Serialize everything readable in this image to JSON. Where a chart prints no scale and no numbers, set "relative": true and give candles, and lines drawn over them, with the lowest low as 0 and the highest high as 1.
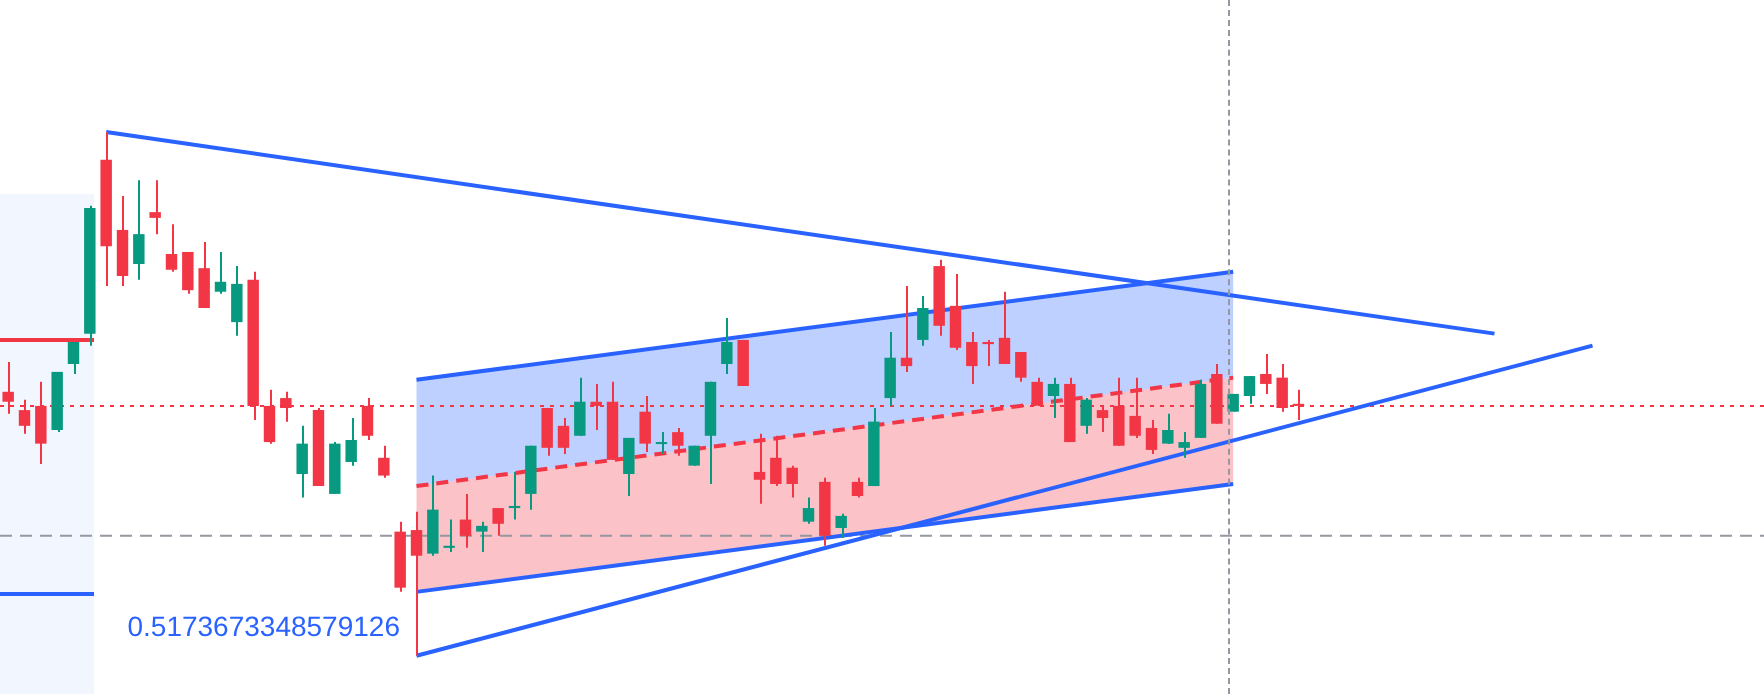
{
  "chart_data": {
    "type": "candlestick",
    "relative": true,
    "categories": [
      null,
      null,
      null,
      null,
      null,
      null,
      null,
      null,
      null,
      null,
      null,
      null,
      null,
      null,
      null,
      null,
      null,
      null,
      null,
      null,
      null,
      null,
      null,
      null,
      null,
      null,
      null,
      null,
      null,
      null,
      null,
      null,
      null,
      null,
      null,
      null,
      null,
      null,
      null,
      null,
      null,
      null,
      null,
      null,
      null,
      null,
      null,
      null,
      null,
      null,
      null,
      null,
      null,
      null,
      null,
      null,
      null,
      null,
      null,
      null,
      null,
      null,
      null,
      null,
      null,
      null,
      null,
      null,
      null,
      null,
      null,
      null,
      null,
      null,
      null,
      null,
      null,
      null,
      null,
      null,
      null,
      null,
      null,
      null,
      null,
      null,
      null,
      null,
      null,
      null,
      null,
      null,
      null,
      null,
      null,
      null,
      null,
      null,
      null,
      null,
      null,
      null,
      null,
      null,
      null,
      null,
      null,
      null
    ],
    "ohlc": [
      [
        0.504,
        0.561,
        0.462,
        0.485
      ],
      [
        0.469,
        0.489,
        0.424,
        0.439
      ],
      [
        0.477,
        0.523,
        0.366,
        0.405
      ],
      [
        0.431,
        0.542,
        0.427,
        0.542
      ],
      [
        0.557,
        0.599,
        0.538,
        0.599
      ],
      [
        0.615,
        0.859,
        0.592,
        0.855
      ],
      [
        0.947,
        1,
        0.706,
        0.782
      ],
      [
        0.813,
        0.878,
        0.706,
        0.725
      ],
      [
        0.748,
        0.908,
        0.718,
        0.805
      ],
      [
        0.847,
        0.908,
        0.805,
        0.836
      ],
      [
        0.767,
        0.824,
        0.733,
        0.737
      ],
      [
        0.771,
        0.771,
        0.691,
        0.698
      ],
      [
        0.74,
        0.79,
        0.664,
        0.664
      ],
      [
        0.695,
        0.771,
        0.691,
        0.714
      ],
      [
        0.637,
        0.744,
        0.611,
        0.71
      ],
      [
        0.718,
        0.733,
        0.45,
        0.477
      ],
      [
        0.477,
        0.508,
        0.405,
        0.408
      ],
      [
        0.492,
        0.504,
        0.447,
        0.473
      ],
      [
        0.347,
        0.439,
        0.302,
        0.405
      ],
      [
        0.469,
        0.473,
        0.324,
        0.324
      ],
      [
        0.309,
        0.408,
        0.309,
        0.405
      ],
      [
        0.37,
        0.454,
        0.363,
        0.412
      ],
      [
        0.477,
        0.492,
        0.412,
        0.42
      ],
      [
        0.378,
        0.401,
        0.34,
        0.344
      ],
      [
        0.237,
        0.256,
        0.122,
        0.13
      ],
      [
        0.24,
        0.275,
        0,
        0.191
      ],
      [
        0.195,
        0.344,
        0.191,
        0.279
      ],
      [
        0.206,
        0.26,
        0.198,
        0.21
      ],
      [
        0.26,
        0.309,
        0.206,
        0.229
      ],
      [
        0.237,
        0.256,
        0.198,
        0.248
      ],
      [
        0.282,
        0.282,
        0.229,
        0.252
      ],
      [
        0.282,
        0.351,
        0.26,
        0.286
      ],
      [
        0.309,
        0.401,
        0.279,
        0.401
      ],
      [
        0.473,
        0.473,
        0.382,
        0.397
      ],
      [
        0.439,
        0.454,
        0.385,
        0.397
      ],
      [
        0.42,
        0.531,
        0.42,
        0.485
      ],
      [
        0.485,
        0.519,
        0.431,
        0.477
      ],
      [
        0.485,
        0.523,
        0.374,
        0.374
      ],
      [
        0.347,
        0.416,
        0.305,
        0.416
      ],
      [
        0.466,
        0.496,
        0.389,
        0.405
      ],
      [
        0.405,
        0.427,
        0.385,
        0.408
      ],
      [
        0.427,
        0.435,
        0.382,
        0.401
      ],
      [
        0.363,
        0.401,
        0.363,
        0.401
      ],
      [
        0.42,
        0.523,
        0.328,
        0.523
      ],
      [
        0.557,
        0.645,
        0.538,
        0.599
      ],
      [
        0.603,
        0.603,
        0.515,
        0.515
      ],
      [
        0.351,
        0.424,
        0.29,
        0.336
      ],
      [
        0.378,
        0.42,
        0.324,
        0.328
      ],
      [
        0.359,
        0.363,
        0.302,
        0.328
      ],
      [
        0.256,
        0.302,
        0.252,
        0.282
      ],
      [
        0.332,
        0.34,
        0.21,
        0.229
      ],
      [
        0.244,
        0.271,
        0.225,
        0.267
      ],
      [
        0.332,
        0.34,
        0.302,
        0.305
      ],
      [
        0.324,
        0.473,
        0.324,
        0.447
      ],
      [
        0.492,
        0.618,
        0.477,
        0.569
      ],
      [
        0.569,
        0.706,
        0.542,
        0.553
      ],
      [
        0.603,
        0.687,
        0.592,
        0.664
      ],
      [
        0.744,
        0.756,
        0.611,
        0.63
      ],
      [
        0.668,
        0.729,
        0.584,
        0.588
      ],
      [
        0.599,
        0.618,
        0.519,
        0.553
      ],
      [
        0.599,
        0.603,
        0.553,
        0.595
      ],
      [
        0.607,
        0.695,
        0.557,
        0.557
      ],
      [
        0.58,
        0.58,
        0.523,
        0.531
      ],
      [
        0.523,
        0.531,
        0.477,
        0.481
      ],
      [
        0.496,
        0.531,
        0.454,
        0.519
      ],
      [
        0.519,
        0.531,
        0.408,
        0.408
      ],
      [
        0.439,
        0.492,
        0.424,
        0.489
      ],
      [
        0.469,
        0.477,
        0.427,
        0.454
      ],
      [
        0.477,
        0.531,
        0.401,
        0.401
      ],
      [
        0.458,
        0.531,
        0.416,
        0.42
      ],
      [
        0.435,
        0.45,
        0.385,
        0.393
      ],
      [
        0.405,
        0.462,
        0.405,
        0.431
      ],
      [
        0.397,
        0.427,
        0.378,
        0.408
      ],
      [
        0.416,
        0.527,
        0.416,
        0.519
      ],
      [
        0.538,
        0.557,
        0.443,
        0.443
      ],
      [
        0.466,
        0.5,
        0.466,
        0.5
      ],
      [
        0.496,
        0.534,
        0.481,
        0.534
      ],
      [
        0.538,
        0.576,
        0.5,
        0.519
      ],
      [
        0.531,
        0.557,
        0.466,
        0.473
      ],
      [
        0.481,
        0.508,
        0.45,
        0.477
      ],
      null,
      null,
      null,
      null,
      null,
      null,
      null,
      null,
      null,
      null,
      null,
      null,
      null,
      null,
      null,
      null,
      null,
      null,
      null,
      null,
      null,
      null,
      null,
      null,
      null,
      null,
      null,
      null
    ],
    "colors": [
      "#f23645",
      "#f23645",
      "#f23645",
      "#089981",
      "#089981",
      "#089981",
      "#f23645",
      "#f23645",
      "#089981",
      "#f23645",
      "#f23645",
      "#f23645",
      "#f23645",
      "#089981",
      "#089981",
      "#f23645",
      "#f23645",
      "#f23645",
      "#089981",
      "#f23645",
      "#089981",
      "#089981",
      "#f23645",
      "#f23645",
      "#f23645",
      "#f23645",
      "#089981",
      "#089981",
      "#f23645",
      "#089981",
      "#f23645",
      "#089981",
      "#089981",
      "#f23645",
      "#f23645",
      "#089981",
      "#f23645",
      "#f23645",
      "#089981",
      "#f23645",
      "#089981",
      "#f23645",
      "#089981",
      "#089981",
      "#089981",
      "#f23645",
      "#f23645",
      "#f23645",
      "#f23645",
      "#089981",
      "#f23645",
      "#089981",
      "#f23645",
      "#089981",
      "#089981",
      "#f23645",
      "#089981",
      "#f23645",
      "#f23645",
      "#f23645",
      "#f23645",
      "#f23645",
      "#f23645",
      "#f23645",
      "#089981",
      "#f23645",
      "#089981",
      "#f23645",
      "#f23645",
      "#f23645",
      "#f23645",
      "#089981",
      "#089981",
      "#089981",
      "#f23645",
      "#089981",
      "#089981",
      "#f23645",
      "#f23645",
      "#f23645",
      null,
      null,
      null,
      null,
      null,
      null,
      null,
      null,
      null,
      null,
      null,
      null,
      null,
      null,
      null,
      null,
      null,
      null,
      null,
      null,
      null,
      null,
      null,
      null,
      null,
      null,
      null,
      null
    ],
    "series": [
      {
        "type": "line",
        "color": "#2962ff",
        "values": [
          null,
          null,
          null,
          null,
          null,
          null,
          1,
          null,
          null,
          null,
          null,
          null,
          null,
          null,
          null,
          null,
          null,
          null,
          null,
          null,
          null,
          null,
          null,
          null,
          null,
          null,
          null,
          null,
          null,
          null,
          null,
          null,
          null,
          null,
          null,
          null,
          null,
          null,
          null,
          null,
          null,
          null,
          null,
          null,
          null,
          null,
          null,
          null,
          null,
          null,
          null,
          null,
          null,
          null,
          null,
          null,
          null,
          null,
          null,
          null,
          null,
          null,
          null,
          null,
          null,
          null,
          null,
          null,
          null,
          null,
          null,
          null,
          null,
          null,
          null,
          null,
          null,
          null,
          null,
          null,
          null,
          null,
          null,
          null,
          null,
          null,
          null,
          null,
          null,
          null,
          null,
          0.615,
          null,
          null,
          null,
          null,
          null,
          null,
          null,
          null,
          null,
          null,
          null,
          null,
          null,
          null,
          null,
          null
        ]
      },
      {
        "type": "line",
        "color": "#2962ff",
        "values": [
          null,
          null,
          null,
          null,
          null,
          null,
          null,
          null,
          null,
          null,
          null,
          null,
          null,
          null,
          null,
          null,
          null,
          null,
          null,
          null,
          null,
          null,
          null,
          null,
          null,
          0,
          null,
          null,
          null,
          null,
          null,
          null,
          null,
          null,
          null,
          null,
          null,
          null,
          null,
          null,
          null,
          null,
          null,
          null,
          null,
          null,
          null,
          null,
          null,
          null,
          null,
          null,
          null,
          null,
          null,
          null,
          null,
          null,
          null,
          null,
          null,
          null,
          null,
          null,
          null,
          null,
          null,
          null,
          null,
          null,
          null,
          null,
          null,
          null,
          null,
          null,
          null,
          null,
          null,
          null,
          null,
          null,
          null,
          null,
          null,
          null,
          null,
          null,
          null,
          null,
          null,
          null,
          null,
          null,
          null,
          null,
          null,
          0.592,
          null,
          null,
          null,
          null,
          null,
          null,
          null,
          null,
          null,
          null
        ]
      },
      {
        "type": "line",
        "color": "#2962ff",
        "values": [
          null,
          null,
          null,
          null,
          null,
          null,
          null,
          null,
          null,
          null,
          null,
          null,
          null,
          null,
          null,
          null,
          null,
          null,
          null,
          null,
          null,
          null,
          null,
          null,
          null,
          0.527,
          null,
          null,
          null,
          null,
          null,
          null,
          null,
          null,
          null,
          null,
          null,
          null,
          null,
          null,
          null,
          null,
          null,
          null,
          null,
          null,
          null,
          null,
          null,
          null,
          null,
          null,
          null,
          null,
          null,
          null,
          null,
          null,
          null,
          null,
          null,
          null,
          null,
          null,
          null,
          null,
          null,
          null,
          null,
          null,
          null,
          null,
          null,
          null,
          null,
          0.733,
          null,
          null,
          null,
          null,
          null,
          null,
          null,
          null,
          null,
          null,
          null,
          null,
          null,
          null,
          null,
          null,
          null,
          null,
          null,
          null,
          null,
          null,
          null,
          null,
          null,
          null,
          null,
          null,
          null,
          null,
          null,
          null
        ],
        "lower": [
          null,
          null,
          null,
          null,
          null,
          null,
          null,
          null,
          null,
          null,
          null,
          null,
          null,
          null,
          null,
          null,
          null,
          null,
          null,
          null,
          null,
          null,
          null,
          null,
          null,
          0.324,
          null,
          null,
          null,
          null,
          null,
          null,
          null,
          null,
          null,
          null,
          null,
          null,
          null,
          null,
          null,
          null,
          null,
          null,
          null,
          null,
          null,
          null,
          null,
          null,
          null,
          null,
          null,
          null,
          null,
          null,
          null,
          null,
          null,
          null,
          null,
          null,
          null,
          null,
          null,
          null,
          null,
          null,
          null,
          null,
          null,
          null,
          null,
          null,
          null,
          0.531,
          null,
          null,
          null,
          null,
          null,
          null,
          null,
          null,
          null,
          null,
          null,
          null,
          null,
          null,
          null,
          null,
          null,
          null,
          null,
          null,
          null,
          null,
          null,
          null,
          null,
          null,
          null,
          null,
          null,
          null,
          null,
          null
        ],
        "upper": [
          null,
          null,
          null,
          null,
          null,
          null,
          null,
          null,
          null,
          null,
          null,
          null,
          null,
          null,
          null,
          null,
          null,
          null,
          null,
          null,
          null,
          null,
          null,
          null,
          null,
          0.527,
          null,
          null,
          null,
          null,
          null,
          null,
          null,
          null,
          null,
          null,
          null,
          null,
          null,
          null,
          null,
          null,
          null,
          null,
          null,
          null,
          null,
          null,
          null,
          null,
          null,
          null,
          null,
          null,
          null,
          null,
          null,
          null,
          null,
          null,
          null,
          null,
          null,
          null,
          null,
          null,
          null,
          null,
          null,
          null,
          null,
          null,
          null,
          null,
          null,
          0.733,
          null,
          null,
          null,
          null,
          null,
          null,
          null,
          null,
          null,
          null,
          null,
          null,
          null,
          null,
          null,
          null,
          null,
          null,
          null,
          null,
          null,
          null,
          null,
          null,
          null,
          null,
          null,
          null,
          null,
          null,
          null,
          null
        ]
      },
      {
        "type": "line",
        "color": "#f23645",
        "line_style": "dashed",
        "values": [
          null,
          null,
          null,
          null,
          null,
          null,
          null,
          null,
          null,
          null,
          null,
          null,
          null,
          null,
          null,
          null,
          null,
          null,
          null,
          null,
          null,
          null,
          null,
          null,
          null,
          0.324,
          null,
          null,
          null,
          null,
          null,
          null,
          null,
          null,
          null,
          null,
          null,
          null,
          null,
          null,
          null,
          null,
          null,
          null,
          null,
          null,
          null,
          null,
          null,
          null,
          null,
          null,
          null,
          null,
          null,
          null,
          null,
          null,
          null,
          null,
          null,
          null,
          null,
          null,
          null,
          null,
          null,
          null,
          null,
          null,
          null,
          null,
          null,
          null,
          null,
          0.531,
          null,
          null,
          null,
          null,
          null,
          null,
          null,
          null,
          null,
          null,
          null,
          null,
          null,
          null,
          null,
          null,
          null,
          null,
          null,
          null,
          null,
          null,
          null,
          null,
          null,
          null,
          null,
          null,
          null,
          null,
          null,
          null
        ],
        "lower": [
          null,
          null,
          null,
          null,
          null,
          null,
          null,
          null,
          null,
          null,
          null,
          null,
          null,
          null,
          null,
          null,
          null,
          null,
          null,
          null,
          null,
          null,
          null,
          null,
          null,
          0.122,
          null,
          null,
          null,
          null,
          null,
          null,
          null,
          null,
          null,
          null,
          null,
          null,
          null,
          null,
          null,
          null,
          null,
          null,
          null,
          null,
          null,
          null,
          null,
          null,
          null,
          null,
          null,
          null,
          null,
          null,
          null,
          null,
          null,
          null,
          null,
          null,
          null,
          null,
          null,
          null,
          null,
          null,
          null,
          null,
          null,
          null,
          null,
          null,
          null,
          0.328,
          null,
          null,
          null,
          null,
          null,
          null,
          null,
          null,
          null,
          null,
          null,
          null,
          null,
          null,
          null,
          null,
          null,
          null,
          null,
          null,
          null,
          null,
          null,
          null,
          null,
          null,
          null,
          null,
          null,
          null,
          null,
          null
        ],
        "upper": [
          null,
          null,
          null,
          null,
          null,
          null,
          null,
          null,
          null,
          null,
          null,
          null,
          null,
          null,
          null,
          null,
          null,
          null,
          null,
          null,
          null,
          null,
          null,
          null,
          null,
          0.324,
          null,
          null,
          null,
          null,
          null,
          null,
          null,
          null,
          null,
          null,
          null,
          null,
          null,
          null,
          null,
          null,
          null,
          null,
          null,
          null,
          null,
          null,
          null,
          null,
          null,
          null,
          null,
          null,
          null,
          null,
          null,
          null,
          null,
          null,
          null,
          null,
          null,
          null,
          null,
          null,
          null,
          null,
          null,
          null,
          null,
          null,
          null,
          null,
          null,
          0.531,
          null,
          null,
          null,
          null,
          null,
          null,
          null,
          null,
          null,
          null,
          null,
          null,
          null,
          null,
          null,
          null,
          null,
          null,
          null,
          null,
          null,
          null,
          null,
          null,
          null,
          null,
          null,
          null,
          null,
          null,
          null,
          null
        ]
      },
      {
        "type": "line",
        "color": "#2962ff",
        "values": [
          null,
          null,
          null,
          null,
          null,
          null,
          null,
          null,
          null,
          null,
          null,
          null,
          null,
          null,
          null,
          null,
          null,
          null,
          null,
          null,
          null,
          null,
          null,
          null,
          null,
          0.122,
          null,
          null,
          null,
          null,
          null,
          null,
          null,
          null,
          null,
          null,
          null,
          null,
          null,
          null,
          null,
          null,
          null,
          null,
          null,
          null,
          null,
          null,
          null,
          null,
          null,
          null,
          null,
          null,
          null,
          null,
          null,
          null,
          null,
          null,
          null,
          null,
          null,
          null,
          null,
          null,
          null,
          null,
          null,
          null,
          null,
          null,
          null,
          null,
          null,
          0.328,
          null,
          null,
          null,
          null,
          null,
          null,
          null,
          null,
          null,
          null,
          null,
          null,
          null,
          null,
          null,
          null,
          null,
          null,
          null,
          null,
          null,
          null,
          null,
          null,
          null,
          null,
          null,
          null,
          null,
          null,
          null,
          null
        ]
      }
    ],
    "ref_lines": [
      {
        "axis": "y",
        "value": 0.477,
        "color": "#f23645",
        "line_style": "dotted"
      },
      {
        "axis": "y",
        "value": 0.229,
        "color": "#9598a1",
        "line_style": "dashed"
      }
    ],
    "annotations": [
      "0.5173673348579126"
    ]
  }
}
